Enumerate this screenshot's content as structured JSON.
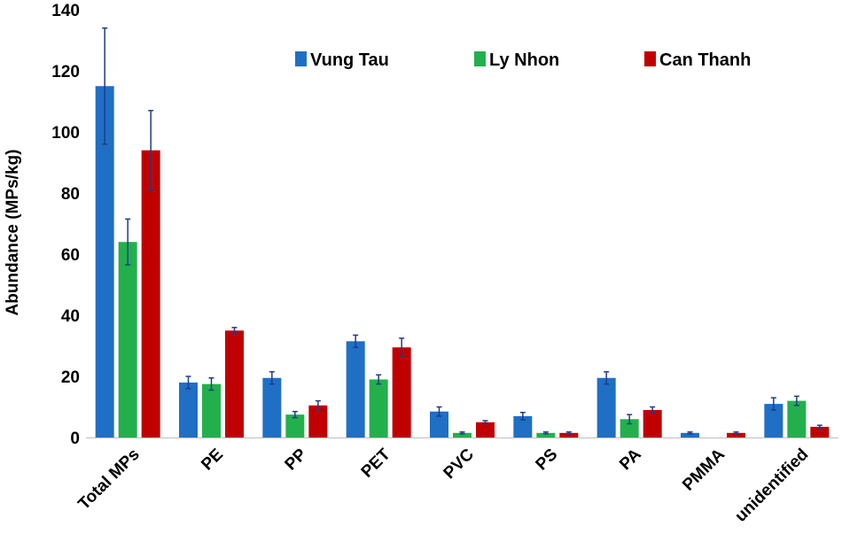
{
  "chart_data": {
    "type": "bar",
    "title": "",
    "xlabel": "",
    "ylabel": "Abundance (MPs/kg)",
    "ylim": [
      0,
      140
    ],
    "yticks": [
      0,
      20,
      40,
      60,
      80,
      100,
      120,
      140
    ],
    "grid": false,
    "legend_position": "top-right",
    "categories": [
      "Total MPs",
      "PE",
      "PP",
      "PET",
      "PVC",
      "PS",
      "PA",
      "PMMA",
      "unidentified"
    ],
    "series": [
      {
        "name": "Vung Tau",
        "color": "#1F6FC5",
        "values": [
          115,
          18,
          19.5,
          31.5,
          8.5,
          7,
          19.5,
          1.5,
          11
        ],
        "errors": [
          19,
          2,
          2,
          2,
          1.5,
          1.2,
          2,
          0.3,
          2
        ]
      },
      {
        "name": "Ly Nhon",
        "color": "#22B04C",
        "values": [
          64,
          17.5,
          7.5,
          19,
          1.5,
          1.5,
          6,
          0,
          12
        ],
        "errors": [
          7.5,
          2,
          1,
          1.5,
          0.3,
          0.3,
          1.5,
          0,
          1.5
        ]
      },
      {
        "name": "Can Thanh",
        "color": "#C00000",
        "values": [
          94,
          35,
          10.5,
          29.5,
          5,
          1.5,
          9,
          1.5,
          3.5
        ],
        "errors": [
          13,
          1,
          1.5,
          3,
          0.5,
          0.3,
          1,
          0.3,
          0.5
        ]
      }
    ],
    "error_bar_color": "#1F3C88"
  }
}
